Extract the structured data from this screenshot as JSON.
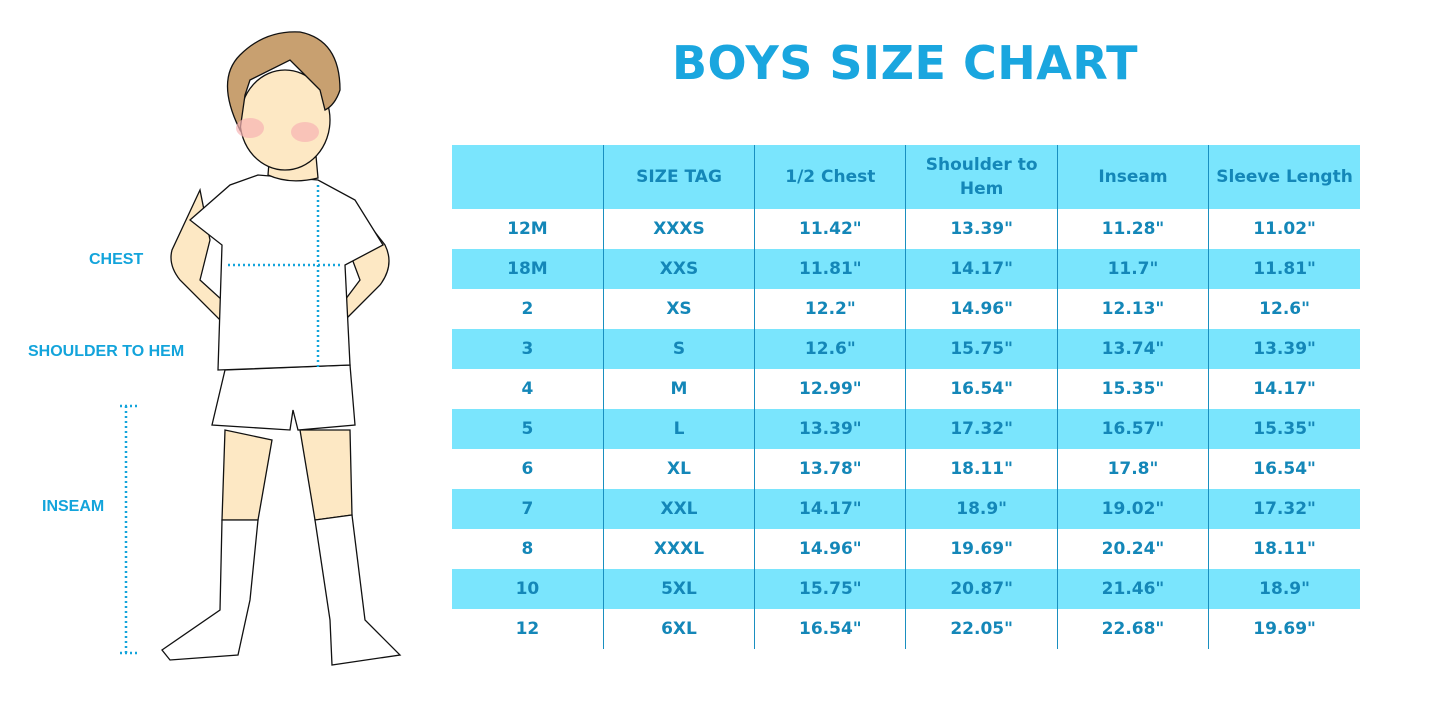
{
  "title": "BOYS SIZE CHART",
  "measure_labels": {
    "chest": "CHEST",
    "shoulder_to_hem": "SHOULDER TO HEM",
    "inseam": "INSEAM"
  },
  "colors": {
    "title": "#1aa6df",
    "header_bg": "#7ae5fd",
    "text": "#1487b8"
  },
  "table": {
    "headers": [
      "",
      "SIZE TAG",
      "1/2 Chest",
      "Shoulder to Hem",
      "Inseam",
      "Sleeve Length"
    ],
    "rows": [
      [
        "12M",
        "XXXS",
        "11.42\"",
        "13.39\"",
        "11.28\"",
        "11.02\""
      ],
      [
        "18M",
        "XXS",
        "11.81\"",
        "14.17\"",
        "11.7\"",
        "11.81\""
      ],
      [
        "2",
        "XS",
        "12.2\"",
        "14.96\"",
        "12.13\"",
        "12.6\""
      ],
      [
        "3",
        "S",
        "12.6\"",
        "15.75\"",
        "13.74\"",
        "13.39\""
      ],
      [
        "4",
        "M",
        "12.99\"",
        "16.54\"",
        "15.35\"",
        "14.17\""
      ],
      [
        "5",
        "L",
        "13.39\"",
        "17.32\"",
        "16.57\"",
        "15.35\""
      ],
      [
        "6",
        "XL",
        "13.78\"",
        "18.11\"",
        "17.8\"",
        "16.54\""
      ],
      [
        "7",
        "XXL",
        "14.17\"",
        "18.9\"",
        "19.02\"",
        "17.32\""
      ],
      [
        "8",
        "XXXL",
        "14.96\"",
        "19.69\"",
        "20.24\"",
        "18.11\""
      ],
      [
        "10",
        "5XL",
        "15.75\"",
        "20.87\"",
        "21.46\"",
        "18.9\""
      ],
      [
        "12",
        "6XL",
        "16.54\"",
        "22.05\"",
        "22.68\"",
        "19.69\""
      ]
    ]
  }
}
